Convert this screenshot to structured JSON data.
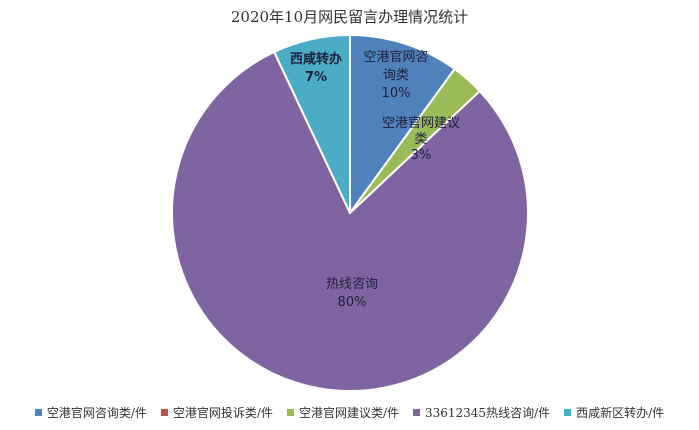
{
  "chart_data": {
    "type": "pie",
    "title": "2020年10月网民留言办理情况统计",
    "slices": [
      {
        "name": "空港官网咨询类/件",
        "value": 10,
        "color": "#4f81bd",
        "label_lines": [
          "空港官网咨",
          "询类",
          "10%"
        ]
      },
      {
        "name": "空港官网投诉类/件",
        "value": 0,
        "color": "#c0504d",
        "label_lines": []
      },
      {
        "name": "空港官网建议类/件",
        "value": 3,
        "color": "#9bbb59",
        "label_lines": [
          "空港官网建议",
          "类",
          "3%"
        ]
      },
      {
        "name": "33612345热线咨询/件",
        "value": 80,
        "color": "#8064a2",
        "label_lines": [
          "热线咨询",
          "80%"
        ]
      },
      {
        "name": "西咸新区转办/件",
        "value": 7,
        "color": "#4bacc6",
        "label_lines": [
          "西咸转办",
          "7%"
        ]
      }
    ],
    "legend_position": "bottom"
  }
}
